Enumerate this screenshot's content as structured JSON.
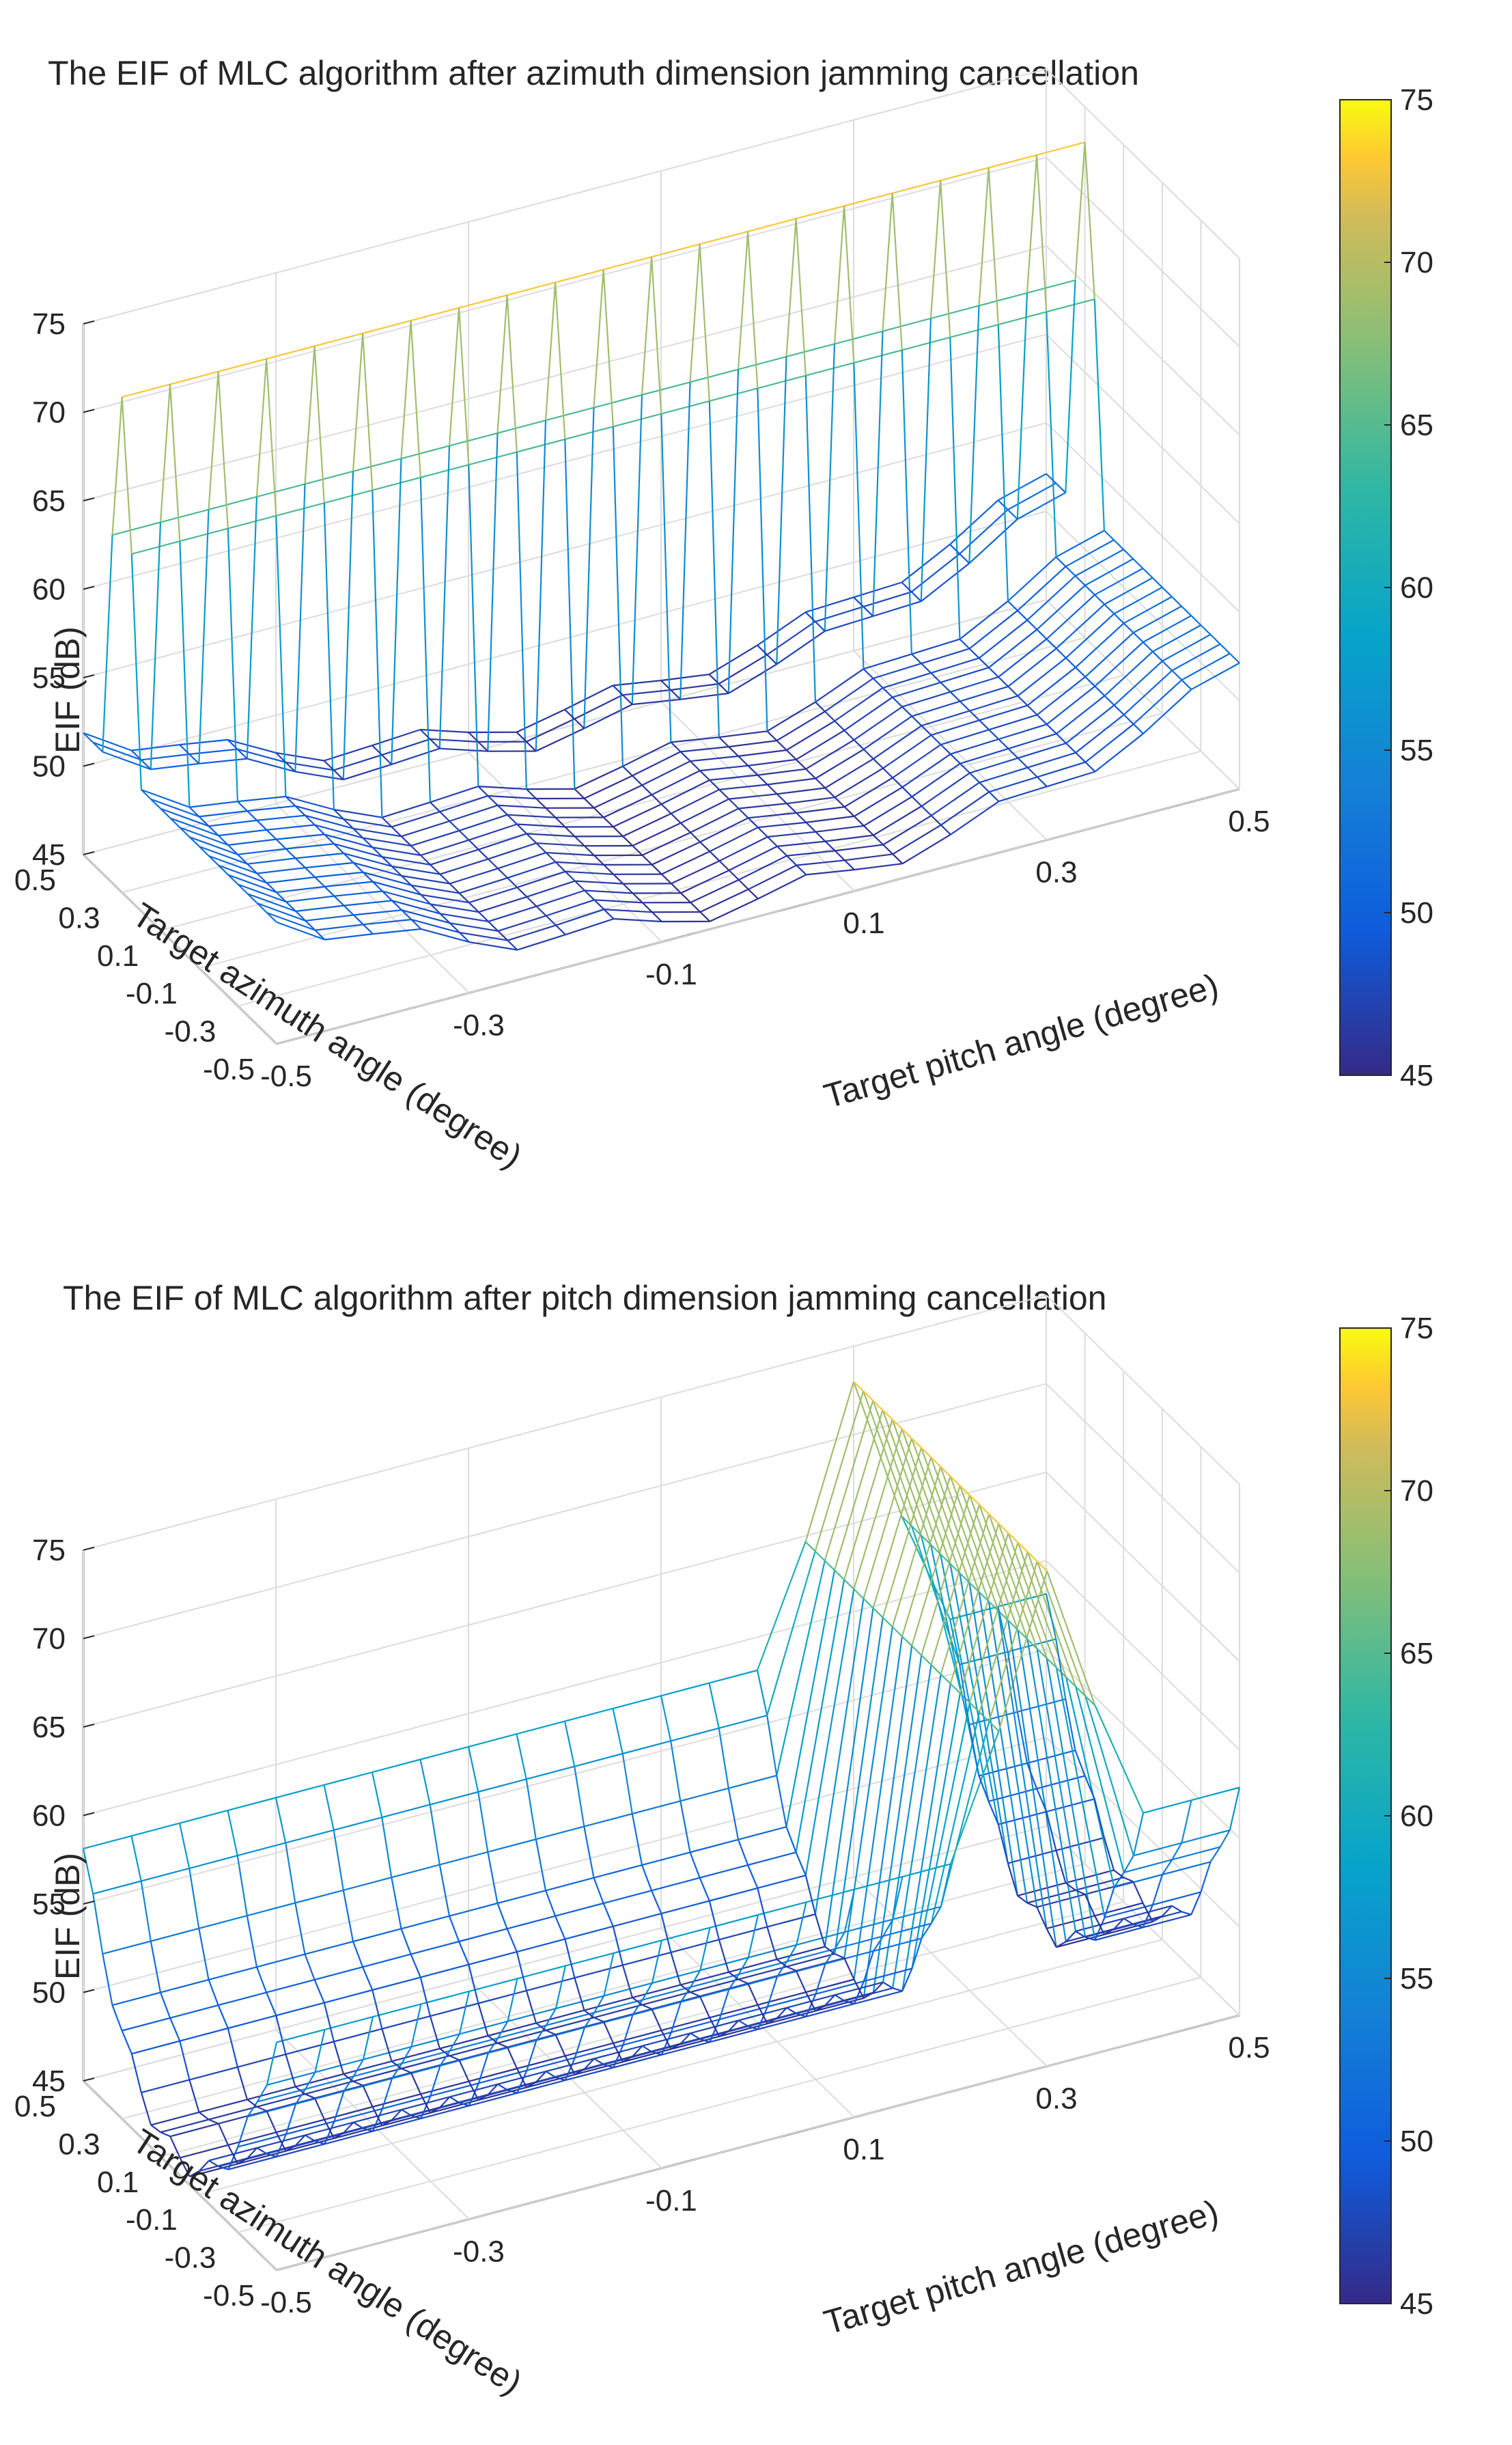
{
  "chart_data": [
    {
      "type": "surface",
      "title": "The EIF of MLC algorithm after azimuth dimension jamming cancellation",
      "xlabel": "Target pitch angle (degree)",
      "ylabel": "Target azimuth angle (degree)",
      "zlabel": "EIF (dB)",
      "xlim": [
        -0.5,
        0.5
      ],
      "ylim": [
        -0.5,
        0.5
      ],
      "zlim": [
        45,
        75
      ],
      "x_ticks": [
        "-0.5",
        "-0.3",
        "-0.1",
        "0.1",
        "0.3",
        "0.5"
      ],
      "y_ticks": [
        "0.5",
        "0.3",
        "0.1",
        "-0.1",
        "-0.3",
        "-0.5"
      ],
      "z_ticks": [
        "45",
        "50",
        "55",
        "60",
        "65",
        "70",
        "75"
      ],
      "colorbar": {
        "min": 45,
        "max": 75,
        "ticks": [
          "75",
          "70",
          "65",
          "60",
          "55",
          "50",
          "45"
        ]
      },
      "jamming_dimension": "azimuth",
      "notch_center_deg": 0.3,
      "peak_EIF_dB": 73,
      "baseline_min_EIF_dB": 46,
      "baseline_edge_EIF_dB": 52
    },
    {
      "type": "surface",
      "title": "The EIF of MLC algorithm after pitch dimension jamming cancellation",
      "xlabel": "Target pitch angle (degree)",
      "ylabel": "Target azimuth angle (degree)",
      "zlabel": "EIF (dB)",
      "xlim": [
        -0.5,
        0.5
      ],
      "ylim": [
        -0.5,
        0.5
      ],
      "zlim": [
        45,
        75
      ],
      "x_ticks": [
        "-0.5",
        "-0.3",
        "-0.1",
        "0.1",
        "0.3",
        "0.5"
      ],
      "y_ticks": [
        "0.5",
        "0.3",
        "0.1",
        "-0.1",
        "-0.3",
        "-0.5"
      ],
      "z_ticks": [
        "45",
        "50",
        "55",
        "60",
        "65",
        "70",
        "75"
      ],
      "colorbar": {
        "min": 45,
        "max": 75,
        "ticks": [
          "75",
          "70",
          "65",
          "60",
          "55",
          "50",
          "45"
        ]
      },
      "jamming_dimension": "pitch",
      "notch_center_deg": 0.3,
      "peak_EIF_dB": 73,
      "baseline_min_EIF_dB": 46,
      "baseline_edge_EIF_dB": 58
    }
  ]
}
